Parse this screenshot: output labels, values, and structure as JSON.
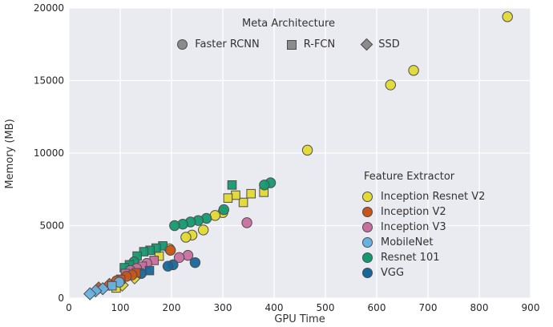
{
  "chart_data": {
    "type": "scatter",
    "title": "",
    "xlabel": "GPU Time",
    "ylabel": "Memory (MB)",
    "xlim": [
      0,
      900
    ],
    "ylim": [
      0,
      20000
    ],
    "x_ticks": [
      0,
      100,
      200,
      300,
      400,
      500,
      600,
      700,
      800,
      900
    ],
    "y_ticks": [
      0,
      5000,
      10000,
      15000,
      20000
    ],
    "grid": true,
    "background_color": "#eaeaf1",
    "gridline_color": "#ffffff",
    "marker_edge_color": "#4c4c4c",
    "marker_legend": {
      "title": "Meta Architecture",
      "items": [
        {
          "label": "Faster RCNN",
          "marker": "circle"
        },
        {
          "label": "R-FCN",
          "marker": "square"
        },
        {
          "label": "SSD",
          "marker": "diamond"
        }
      ]
    },
    "color_legend": {
      "title": "Feature Extractor",
      "items": [
        {
          "label": "Inception Resnet V2",
          "color": "#e3da33"
        },
        {
          "label": "Inception V2",
          "color": "#c8551a"
        },
        {
          "label": "Inception V3",
          "color": "#c96f9f"
        },
        {
          "label": "MobileNet",
          "color": "#67b2e3"
        },
        {
          "label": "Resnet 101",
          "color": "#13996f"
        },
        {
          "label": "VGG",
          "color": "#16679a"
        }
      ]
    },
    "points": [
      {
        "extractor": "Inception Resnet V2",
        "arch": "circle",
        "x": 855,
        "y": 19400
      },
      {
        "extractor": "Inception Resnet V2",
        "arch": "circle",
        "x": 672,
        "y": 15700
      },
      {
        "extractor": "Inception Resnet V2",
        "arch": "circle",
        "x": 627,
        "y": 14700
      },
      {
        "extractor": "Inception Resnet V2",
        "arch": "circle",
        "x": 465,
        "y": 10200
      },
      {
        "extractor": "Inception Resnet V2",
        "arch": "square",
        "x": 380,
        "y": 7300
      },
      {
        "extractor": "Inception Resnet V2",
        "arch": "square",
        "x": 355,
        "y": 7200
      },
      {
        "extractor": "Inception Resnet V2",
        "arch": "square",
        "x": 340,
        "y": 6600
      },
      {
        "extractor": "Inception Resnet V2",
        "arch": "square",
        "x": 325,
        "y": 7100
      },
      {
        "extractor": "Inception Resnet V2",
        "arch": "square",
        "x": 310,
        "y": 6900
      },
      {
        "extractor": "Inception Resnet V2",
        "arch": "circle",
        "x": 300,
        "y": 5900
      },
      {
        "extractor": "Inception Resnet V2",
        "arch": "circle",
        "x": 285,
        "y": 5700
      },
      {
        "extractor": "Inception Resnet V2",
        "arch": "circle",
        "x": 262,
        "y": 4700
      },
      {
        "extractor": "Inception Resnet V2",
        "arch": "circle",
        "x": 240,
        "y": 4350
      },
      {
        "extractor": "Inception Resnet V2",
        "arch": "circle",
        "x": 228,
        "y": 4200
      },
      {
        "extractor": "Inception Resnet V2",
        "arch": "circle",
        "x": 196,
        "y": 3400
      },
      {
        "extractor": "Inception Resnet V2",
        "arch": "square",
        "x": 176,
        "y": 2900
      },
      {
        "extractor": "Inception Resnet V2",
        "arch": "diamond",
        "x": 128,
        "y": 1400
      },
      {
        "extractor": "Inception Resnet V2",
        "arch": "diamond",
        "x": 104,
        "y": 900
      },
      {
        "extractor": "Inception Resnet V2",
        "arch": "square",
        "x": 92,
        "y": 700
      },
      {
        "extractor": "Resnet 101",
        "arch": "circle",
        "x": 393,
        "y": 7950
      },
      {
        "extractor": "Resnet 101",
        "arch": "circle",
        "x": 381,
        "y": 7800
      },
      {
        "extractor": "Resnet 101",
        "arch": "square",
        "x": 318,
        "y": 7800
      },
      {
        "extractor": "Resnet 101",
        "arch": "circle",
        "x": 302,
        "y": 6100
      },
      {
        "extractor": "Resnet 101",
        "arch": "circle",
        "x": 268,
        "y": 5500
      },
      {
        "extractor": "Resnet 101",
        "arch": "circle",
        "x": 252,
        "y": 5350
      },
      {
        "extractor": "Resnet 101",
        "arch": "circle",
        "x": 237,
        "y": 5250
      },
      {
        "extractor": "Resnet 101",
        "arch": "circle",
        "x": 222,
        "y": 5100
      },
      {
        "extractor": "Resnet 101",
        "arch": "circle",
        "x": 206,
        "y": 5000
      },
      {
        "extractor": "Resnet 101",
        "arch": "square",
        "x": 183,
        "y": 3600
      },
      {
        "extractor": "Resnet 101",
        "arch": "square",
        "x": 170,
        "y": 3450
      },
      {
        "extractor": "Resnet 101",
        "arch": "square",
        "x": 158,
        "y": 3300
      },
      {
        "extractor": "Resnet 101",
        "arch": "square",
        "x": 146,
        "y": 3200
      },
      {
        "extractor": "Resnet 101",
        "arch": "square",
        "x": 133,
        "y": 2900
      },
      {
        "extractor": "Resnet 101",
        "arch": "circle",
        "x": 127,
        "y": 2500
      },
      {
        "extractor": "Resnet 101",
        "arch": "square",
        "x": 118,
        "y": 2300
      },
      {
        "extractor": "Resnet 101",
        "arch": "square",
        "x": 108,
        "y": 2100
      },
      {
        "extractor": "Inception V3",
        "arch": "circle",
        "x": 347,
        "y": 5200
      },
      {
        "extractor": "Inception V3",
        "arch": "circle",
        "x": 232,
        "y": 2950
      },
      {
        "extractor": "Inception V3",
        "arch": "circle",
        "x": 215,
        "y": 2800
      },
      {
        "extractor": "Inception V3",
        "arch": "square",
        "x": 166,
        "y": 2600
      },
      {
        "extractor": "Inception V3",
        "arch": "circle",
        "x": 152,
        "y": 2400
      },
      {
        "extractor": "Inception V3",
        "arch": "square",
        "x": 143,
        "y": 2200
      },
      {
        "extractor": "Inception V3",
        "arch": "circle",
        "x": 132,
        "y": 2050
      },
      {
        "extractor": "Inception V3",
        "arch": "circle",
        "x": 120,
        "y": 1900
      },
      {
        "extractor": "Inception V3",
        "arch": "square",
        "x": 110,
        "y": 1700
      },
      {
        "extractor": "VGG",
        "arch": "circle",
        "x": 246,
        "y": 2450
      },
      {
        "extractor": "VGG",
        "arch": "circle",
        "x": 203,
        "y": 2300
      },
      {
        "extractor": "VGG",
        "arch": "circle",
        "x": 193,
        "y": 2200
      },
      {
        "extractor": "VGG",
        "arch": "square",
        "x": 157,
        "y": 1900
      },
      {
        "extractor": "VGG",
        "arch": "circle",
        "x": 141,
        "y": 1700
      },
      {
        "extractor": "Inception V2",
        "arch": "circle",
        "x": 198,
        "y": 3300
      },
      {
        "extractor": "Inception V2",
        "arch": "square",
        "x": 131,
        "y": 1750
      },
      {
        "extractor": "Inception V2",
        "arch": "circle",
        "x": 123,
        "y": 1600
      },
      {
        "extractor": "Inception V2",
        "arch": "circle",
        "x": 112,
        "y": 1500
      },
      {
        "extractor": "Inception V2",
        "arch": "square",
        "x": 101,
        "y": 1300
      },
      {
        "extractor": "Inception V2",
        "arch": "circle",
        "x": 93,
        "y": 1200
      },
      {
        "extractor": "Inception V2",
        "arch": "diamond",
        "x": 79,
        "y": 950
      },
      {
        "extractor": "Inception V2",
        "arch": "diamond",
        "x": 58,
        "y": 700
      },
      {
        "extractor": "MobileNet",
        "arch": "circle",
        "x": 98,
        "y": 1100
      },
      {
        "extractor": "MobileNet",
        "arch": "square",
        "x": 84,
        "y": 850
      },
      {
        "extractor": "MobileNet",
        "arch": "diamond",
        "x": 66,
        "y": 650
      },
      {
        "extractor": "MobileNet",
        "arch": "diamond",
        "x": 52,
        "y": 500
      },
      {
        "extractor": "MobileNet",
        "arch": "diamond",
        "x": 41,
        "y": 300
      }
    ]
  }
}
